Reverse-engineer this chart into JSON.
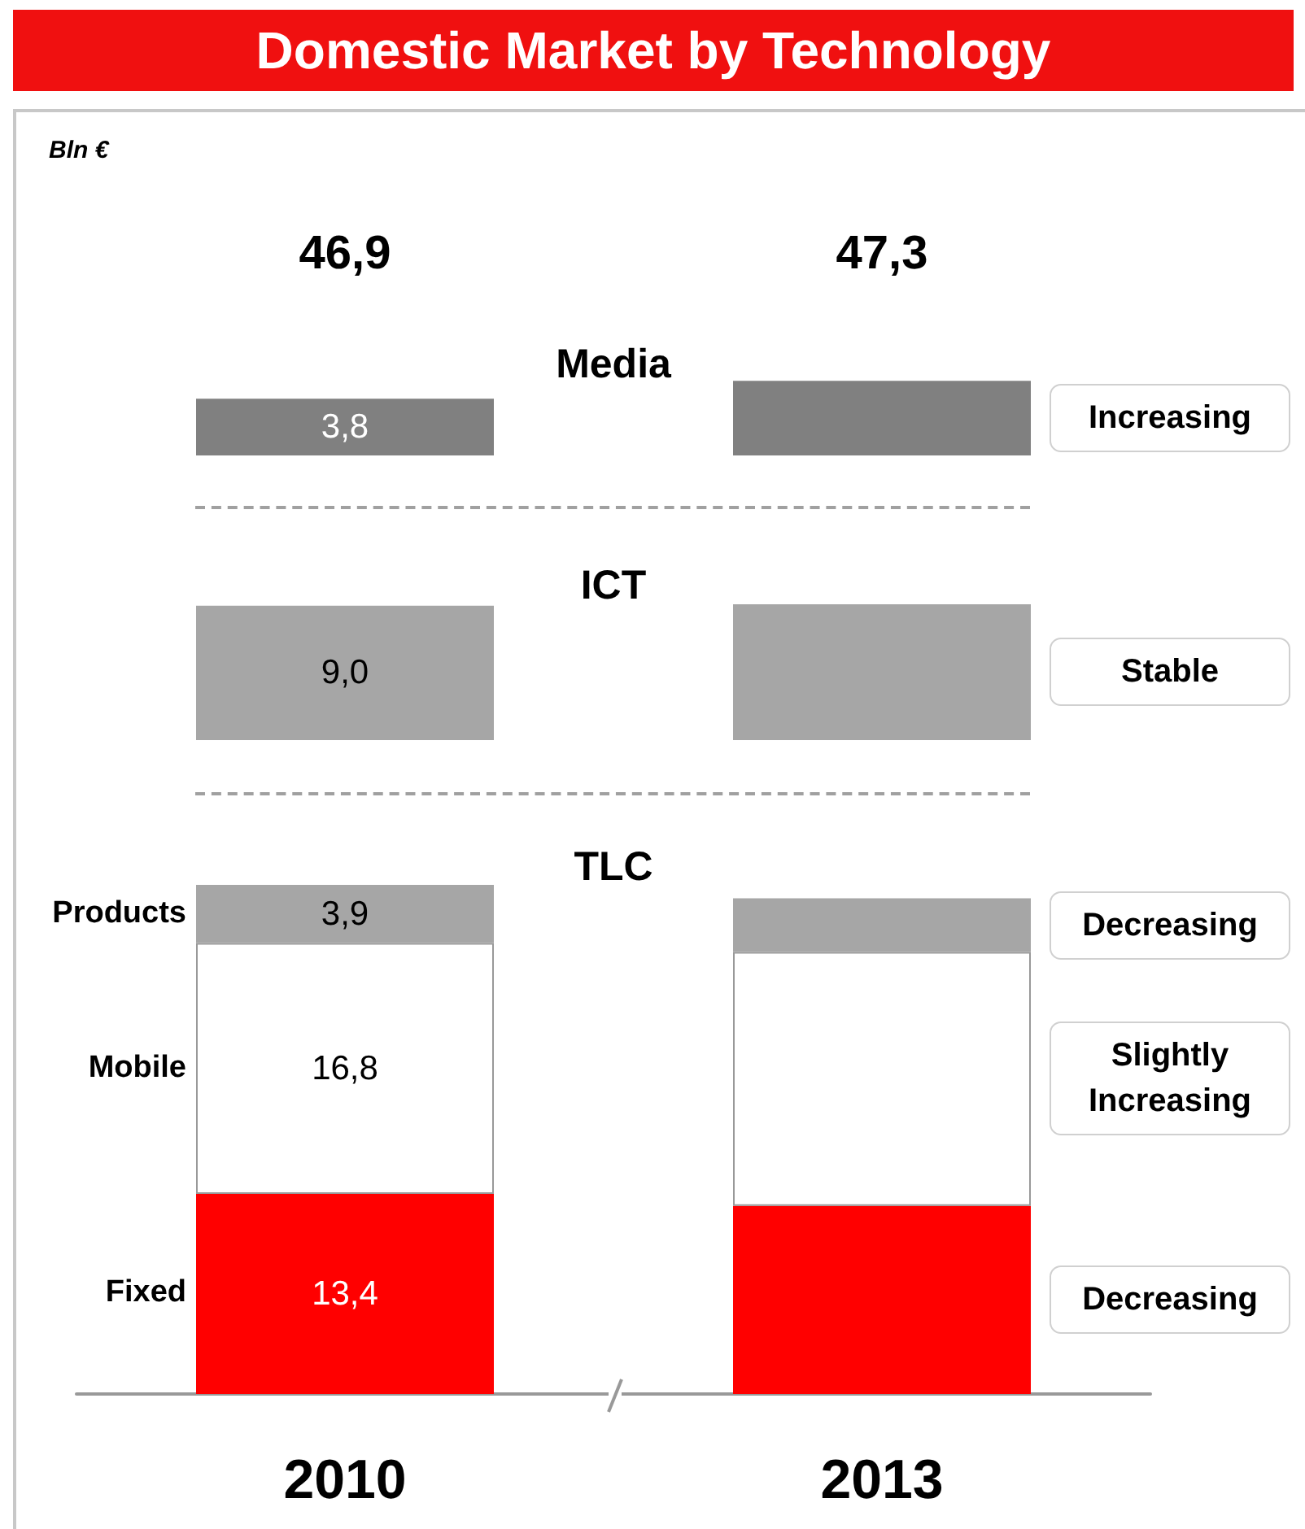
{
  "chart_data": [
    {
      "type": "bar",
      "title": "Domestic Market by Technology",
      "subtitle": "Media",
      "ylabel": "Bln €",
      "categories": [
        "2010",
        "2013"
      ],
      "tick_labels": false,
      "series": [
        {
          "color": "#808080",
          "values": [
            3.8,
            5.0
          ],
          "value_labels": [
            "3,8",
            null
          ]
        }
      ],
      "annotations": [
        "46,9",
        "47,3",
        "Increasing"
      ]
    },
    {
      "type": "bar",
      "title": "ICT",
      "categories": [
        "2010",
        "2013"
      ],
      "tick_labels": false,
      "series": [
        {
          "color": "#a6a6a6",
          "values": [
            9.0,
            9.1
          ],
          "value_labels": [
            "9,0",
            null
          ]
        }
      ],
      "annotations": [
        "Stable"
      ]
    },
    {
      "type": "bar",
      "title": "TLC",
      "categories": [
        "2010",
        "2013"
      ],
      "stacked": true,
      "series": [
        {
          "name": "Fixed",
          "color": "#ff0000",
          "values": [
            13.4,
            12.6
          ],
          "value_labels": [
            "13,4",
            null
          ]
        },
        {
          "name": "Mobile",
          "color": "#ffffff",
          "values": [
            16.8,
            17.0
          ],
          "value_labels": [
            "16,8",
            null
          ]
        },
        {
          "name": "Products",
          "color": "#a6a6a6",
          "values": [
            3.9,
            3.6
          ],
          "value_labels": [
            "3,9",
            null
          ]
        }
      ],
      "annotations": [
        "Decreasing",
        "Slightly Increasing",
        "Decreasing"
      ]
    }
  ]
}
